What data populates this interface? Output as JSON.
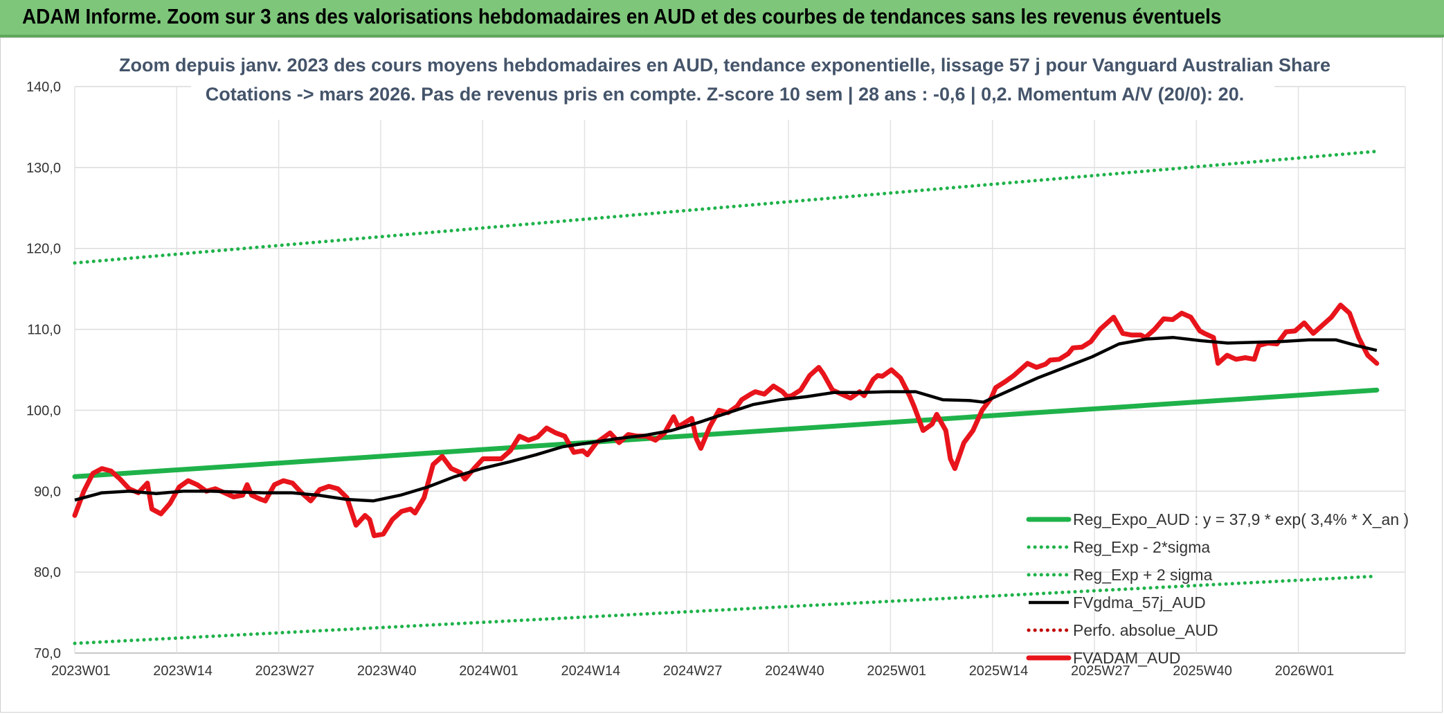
{
  "banner": {
    "title": "ADAM Informe. Zoom sur 3 ans des valorisations hebdomadaires en AUD et des courbes de tendances sans les revenus éventuels"
  },
  "chart_data": {
    "type": "line",
    "title": "Zoom depuis janv. 2023 des cours moyens hebdomadaires en AUD, tendance exponentielle, lissage 57 j pour Vanguard Australian Share",
    "subtitle": "Cotations -> mars 2026. Pas de revenus pris en compte. Z-score 10 sem | 28 ans : -0,6 | 0,2. Momentum A/V (20/0): 20.",
    "xlabel": "",
    "ylabel": "",
    "x_ticks": [
      "2023W01",
      "2023W14",
      "2023W27",
      "2023W40",
      "2024W01",
      "2024W14",
      "2024W27",
      "2024W40",
      "2025W01",
      "2025W14",
      "2025W27",
      "2025W40",
      "2026W01"
    ],
    "x_range_weeks": [
      0,
      166
    ],
    "ylim": [
      70,
      140
    ],
    "y_ticks": [
      "70,0",
      "80,0",
      "90,0",
      "100,0",
      "110,0",
      "120,0",
      "130,0",
      "140,0"
    ],
    "grid": true,
    "legend_position": "bottom-right",
    "series": [
      {
        "name": "Reg_Expo_AUD : y = 37,9 * exp( 3,4% *  X_an )",
        "color": "#1fb24a",
        "style": "solid-thick",
        "points": [
          [
            0,
            91.8
          ],
          [
            166,
            102.5
          ]
        ]
      },
      {
        "name": "Reg_Exp - 2*sigma",
        "color": "#1fb24a",
        "style": "dotted",
        "points": [
          [
            0,
            71.2
          ],
          [
            166,
            79.5
          ]
        ]
      },
      {
        "name": "Reg_Exp + 2 sigma",
        "color": "#1fb24a",
        "style": "dotted",
        "points": [
          [
            0,
            118.2
          ],
          [
            166,
            132.0
          ]
        ]
      },
      {
        "name": "FVgdma_57j_AUD",
        "color": "#000000",
        "style": "solid",
        "points": [
          [
            0,
            88.9
          ],
          [
            4,
            89.8
          ],
          [
            8,
            90.0
          ],
          [
            12,
            89.7
          ],
          [
            16,
            90.0
          ],
          [
            20,
            90.0
          ],
          [
            24,
            89.9
          ],
          [
            28,
            89.8
          ],
          [
            32,
            89.8
          ],
          [
            36,
            89.5
          ],
          [
            40,
            89.0
          ],
          [
            44,
            88.8
          ],
          [
            48,
            89.5
          ],
          [
            52,
            90.5
          ],
          [
            56,
            91.8
          ],
          [
            60,
            92.8
          ],
          [
            64,
            93.6
          ],
          [
            68,
            94.5
          ],
          [
            72,
            95.5
          ],
          [
            76,
            96.0
          ],
          [
            80,
            96.5
          ],
          [
            84,
            96.9
          ],
          [
            88,
            97.5
          ],
          [
            92,
            98.5
          ],
          [
            96,
            99.6
          ],
          [
            100,
            100.7
          ],
          [
            104,
            101.3
          ],
          [
            108,
            101.7
          ],
          [
            112,
            102.2
          ],
          [
            116,
            102.2
          ],
          [
            120,
            102.3
          ],
          [
            124,
            102.3
          ],
          [
            128,
            101.3
          ],
          [
            132,
            101.2
          ],
          [
            134,
            101.0
          ],
          [
            138,
            102.5
          ],
          [
            142,
            104.0
          ],
          [
            146,
            105.3
          ],
          [
            150,
            106.6
          ],
          [
            154,
            108.2
          ],
          [
            158,
            108.8
          ],
          [
            162,
            109.0
          ],
          [
            166,
            108.6
          ],
          [
            170,
            108.3
          ],
          [
            174,
            108.4
          ],
          [
            178,
            108.5
          ],
          [
            182,
            108.7
          ],
          [
            186,
            108.7
          ],
          [
            189,
            108.0
          ],
          [
            192,
            107.4
          ]
        ]
      },
      {
        "name": "Perfo. absolue_AUD",
        "color": "#c00000",
        "style": "dotted",
        "points": []
      },
      {
        "name": "FVADAM_AUD",
        "color": "#e8141b",
        "style": "solid-thick",
        "points": [
          [
            0,
            87.0
          ],
          [
            2,
            90.0
          ],
          [
            4,
            92.2
          ],
          [
            6,
            92.8
          ],
          [
            8,
            92.5
          ],
          [
            10,
            91.5
          ],
          [
            12,
            90.3
          ],
          [
            14,
            89.8
          ],
          [
            16,
            91.0
          ],
          [
            17,
            87.8
          ],
          [
            19,
            87.2
          ],
          [
            21,
            88.5
          ],
          [
            23,
            90.5
          ],
          [
            25,
            91.3
          ],
          [
            27,
            90.8
          ],
          [
            29,
            90.0
          ],
          [
            31,
            90.3
          ],
          [
            33,
            89.8
          ],
          [
            35,
            89.3
          ],
          [
            37,
            89.5
          ],
          [
            38,
            90.8
          ],
          [
            39,
            89.5
          ],
          [
            41,
            89.0
          ],
          [
            42,
            88.8
          ],
          [
            44,
            90.8
          ],
          [
            46,
            91.3
          ],
          [
            48,
            91.0
          ],
          [
            50,
            89.8
          ],
          [
            52,
            88.8
          ],
          [
            54,
            90.2
          ],
          [
            56,
            90.6
          ],
          [
            58,
            90.3
          ],
          [
            60,
            89.2
          ],
          [
            62,
            85.8
          ],
          [
            64,
            87.0
          ],
          [
            65,
            86.5
          ],
          [
            66,
            84.5
          ],
          [
            68,
            84.7
          ],
          [
            70,
            86.5
          ],
          [
            72,
            87.5
          ],
          [
            74,
            87.8
          ],
          [
            75,
            87.3
          ],
          [
            77,
            89.2
          ],
          [
            79,
            93.3
          ],
          [
            81,
            94.3
          ],
          [
            83,
            92.8
          ],
          [
            85,
            92.3
          ],
          [
            86,
            91.5
          ],
          [
            88,
            92.8
          ],
          [
            90,
            94.0
          ],
          [
            92,
            94.0
          ],
          [
            94,
            94.0
          ],
          [
            96,
            95.0
          ],
          [
            98,
            96.8
          ],
          [
            100,
            96.3
          ],
          [
            102,
            96.7
          ],
          [
            104,
            97.8
          ],
          [
            106,
            97.2
          ],
          [
            108,
            96.8
          ],
          [
            110,
            94.8
          ],
          [
            112,
            95.0
          ],
          [
            113,
            94.5
          ],
          [
            115,
            96.0
          ],
          [
            117,
            96.8
          ],
          [
            118,
            97.2
          ],
          [
            120,
            96.0
          ],
          [
            122,
            97.0
          ],
          [
            124,
            96.8
          ],
          [
            126,
            96.8
          ],
          [
            128,
            96.3
          ],
          [
            130,
            97.2
          ],
          [
            132,
            99.2
          ],
          [
            133,
            98.0
          ],
          [
            134,
            98.3
          ],
          [
            136,
            99.0
          ],
          [
            137,
            96.5
          ],
          [
            138,
            95.3
          ],
          [
            140,
            98.0
          ],
          [
            142,
            100.0
          ],
          [
            144,
            99.7
          ],
          [
            146,
            100.5
          ],
          [
            147,
            101.3
          ],
          [
            149,
            102.0
          ],
          [
            150,
            102.3
          ],
          [
            152,
            102.0
          ],
          [
            154,
            103.0
          ],
          [
            156,
            102.3
          ],
          [
            157,
            101.7
          ],
          [
            158,
            101.8
          ],
          [
            160,
            102.5
          ],
          [
            162,
            104.3
          ],
          [
            164,
            105.3
          ],
          [
            165,
            104.5
          ],
          [
            167,
            102.5
          ],
          [
            169,
            102.0
          ],
          [
            171,
            101.5
          ],
          [
            173,
            102.3
          ],
          [
            174,
            101.8
          ],
          [
            176,
            103.8
          ],
          [
            177,
            104.3
          ],
          [
            178,
            104.2
          ],
          [
            180,
            105.0
          ],
          [
            182,
            104.0
          ],
          [
            184,
            101.8
          ],
          [
            185,
            100.5
          ],
          [
            187,
            97.5
          ],
          [
            189,
            98.3
          ],
          [
            190,
            99.5
          ],
          [
            192,
            97.5
          ],
          [
            193,
            94.0
          ],
          [
            194,
            92.8
          ],
          [
            196,
            96.0
          ],
          [
            198,
            97.5
          ],
          [
            200,
            100.0
          ],
          [
            202,
            101.5
          ],
          [
            203,
            102.8
          ],
          [
            205,
            103.5
          ],
          [
            207,
            104.3
          ],
          [
            208,
            104.8
          ],
          [
            210,
            105.8
          ],
          [
            212,
            105.3
          ],
          [
            214,
            105.7
          ],
          [
            215,
            106.2
          ],
          [
            217,
            106.3
          ],
          [
            219,
            107.0
          ],
          [
            220,
            107.7
          ],
          [
            222,
            107.8
          ],
          [
            224,
            108.5
          ],
          [
            226,
            110.0
          ],
          [
            228,
            111.0
          ],
          [
            229,
            111.5
          ],
          [
            231,
            109.5
          ],
          [
            233,
            109.3
          ],
          [
            235,
            109.3
          ],
          [
            236,
            109.0
          ],
          [
            238,
            110.0
          ],
          [
            240,
            111.3
          ],
          [
            242,
            111.2
          ],
          [
            244,
            112.0
          ],
          [
            246,
            111.5
          ],
          [
            248,
            109.8
          ],
          [
            249,
            109.5
          ],
          [
            251,
            109.0
          ],
          [
            252,
            105.8
          ],
          [
            254,
            106.8
          ],
          [
            256,
            106.3
          ],
          [
            258,
            106.5
          ],
          [
            260,
            106.3
          ],
          [
            261,
            108.0
          ],
          [
            263,
            108.3
          ],
          [
            265,
            108.2
          ],
          [
            267,
            109.7
          ],
          [
            269,
            109.8
          ],
          [
            271,
            110.8
          ],
          [
            273,
            109.5
          ],
          [
            275,
            110.5
          ],
          [
            277,
            111.5
          ],
          [
            279,
            113.0
          ],
          [
            281,
            112.0
          ],
          [
            283,
            109.0
          ],
          [
            285,
            106.8
          ],
          [
            287,
            105.8
          ]
        ]
      }
    ]
  }
}
